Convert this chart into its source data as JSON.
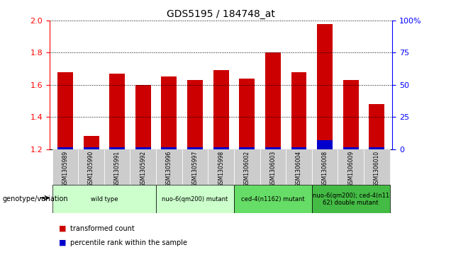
{
  "title": "GDS5195 / 184748_at",
  "samples": [
    "GSM1305989",
    "GSM1305990",
    "GSM1305991",
    "GSM1305992",
    "GSM1305996",
    "GSM1305997",
    "GSM1305998",
    "GSM1306002",
    "GSM1306003",
    "GSM1306004",
    "GSM1306008",
    "GSM1306009",
    "GSM1306010"
  ],
  "red_values": [
    1.68,
    1.28,
    1.67,
    1.6,
    1.65,
    1.63,
    1.69,
    1.64,
    1.8,
    1.68,
    1.98,
    1.63,
    1.48
  ],
  "blue_values": [
    0.012,
    0.01,
    0.013,
    0.012,
    0.012,
    0.012,
    0.012,
    0.012,
    0.013,
    0.012,
    0.055,
    0.012,
    0.01
  ],
  "ymin": 1.2,
  "ymax": 2.0,
  "yticks": [
    1.2,
    1.4,
    1.6,
    1.8,
    2.0
  ],
  "right_yticks": [
    0,
    25,
    50,
    75,
    100
  ],
  "right_ytick_labels": [
    "0",
    "25",
    "50",
    "75",
    "100%"
  ],
  "bar_width": 0.6,
  "groups": [
    {
      "label": "wild type",
      "start": 0,
      "end": 3,
      "color": "#ccffcc"
    },
    {
      "label": "nuo-6(qm200) mutant",
      "start": 4,
      "end": 6,
      "color": "#ccffcc"
    },
    {
      "label": "ced-4(n1162) mutant",
      "start": 7,
      "end": 9,
      "color": "#66dd66"
    },
    {
      "label": "nuo-6(qm200); ced-4(n11\n62) double mutant",
      "start": 10,
      "end": 12,
      "color": "#44bb44"
    }
  ],
  "group_label_prefix": "genotype/variation",
  "legend_red": "transformed count",
  "legend_blue": "percentile rank within the sample",
  "bar_color_red": "#cc0000",
  "bar_color_blue": "#0000cc",
  "tick_bg_color": "#cccccc"
}
